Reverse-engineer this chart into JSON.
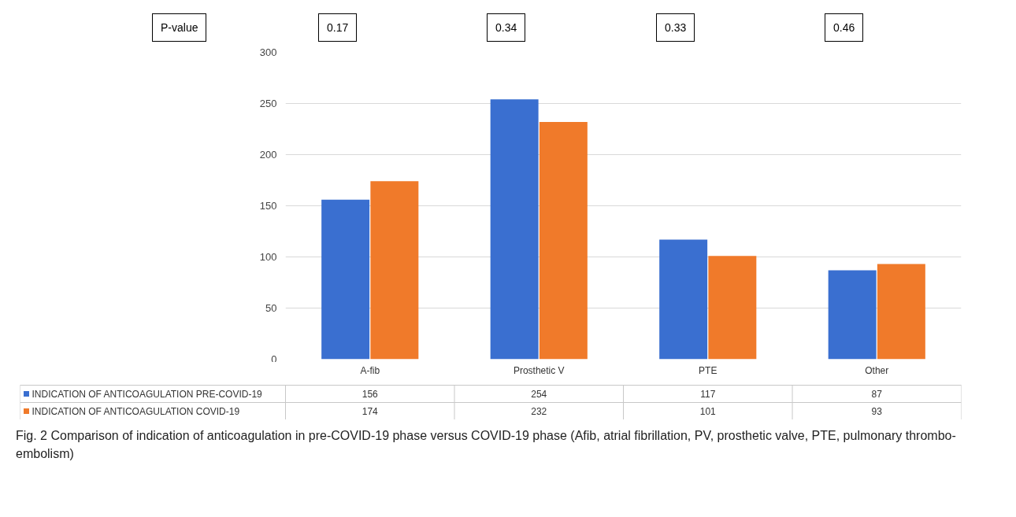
{
  "chart_data": {
    "type": "bar",
    "categories": [
      "A-fib",
      "Prosthetic V",
      "PTE",
      "Other"
    ],
    "series": [
      {
        "name": "INDICATION OF ANTICOAGULATION PRE-COVID-19",
        "color": "#3a6fd0",
        "values": [
          156,
          254,
          117,
          87
        ]
      },
      {
        "name": "INDICATION OF ANTICOAGULATION COVID-19",
        "color": "#f07a2a",
        "values": [
          174,
          232,
          101,
          93
        ]
      }
    ],
    "ylim": [
      0,
      300
    ],
    "yticks": [
      0,
      50,
      100,
      150,
      200,
      250,
      300
    ],
    "grid": "y",
    "legend": "bottom",
    "data_labels": true,
    "annotations": [
      "P-value",
      "0.17",
      "0.34",
      "0.33",
      "0.46",
      "Fig. 2 Comparison of indication of anticoagulation in pre-COVID-19 phase versus COVID-19 phase (Afib, atrial fibrillation, PV, prosthetic valve, PTE, pulmonary thrombo-embolism)"
    ]
  }
}
